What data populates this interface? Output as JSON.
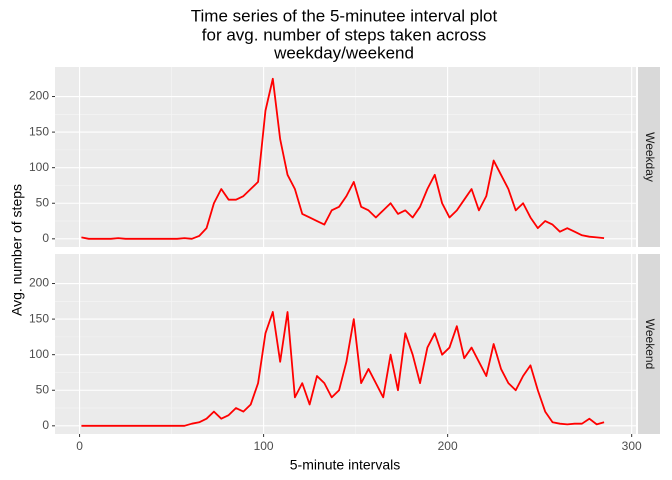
{
  "chart_data": [
    {
      "type": "line",
      "title": [
        "Time series of the 5-minutee interval plot",
        "for avg. number of steps taken across",
        "weekday/weekend"
      ],
      "y_label": "Avg. number of steps",
      "facet": "Weekday",
      "x": [
        1,
        5,
        9,
        13,
        17,
        21,
        25,
        29,
        33,
        37,
        41,
        45,
        49,
        53,
        57,
        61,
        65,
        69,
        73,
        77,
        81,
        85,
        89,
        93,
        97,
        101,
        105,
        109,
        113,
        117,
        121,
        125,
        129,
        133,
        137,
        141,
        145,
        149,
        153,
        157,
        161,
        165,
        169,
        173,
        177,
        181,
        185,
        189,
        193,
        197,
        201,
        205,
        209,
        213,
        217,
        221,
        225,
        229,
        233,
        237,
        241,
        245,
        249,
        253,
        257,
        261,
        265,
        269,
        273,
        277,
        281,
        285
      ],
      "series": [
        {
          "color": "#ff0000",
          "values": [
            2,
            0,
            0,
            0,
            0,
            1,
            0,
            0,
            0,
            0,
            0,
            0,
            0,
            0,
            1,
            0,
            4,
            15,
            50,
            70,
            55,
            55,
            60,
            70,
            80,
            180,
            225,
            140,
            90,
            70,
            35,
            30,
            25,
            20,
            40,
            45,
            60,
            80,
            45,
            40,
            30,
            40,
            50,
            35,
            40,
            30,
            45,
            70,
            90,
            50,
            30,
            40,
            55,
            70,
            40,
            60,
            110,
            90,
            70,
            40,
            50,
            30,
            15,
            25,
            20,
            10,
            15,
            10,
            5,
            3,
            2,
            1
          ]
        }
      ],
      "xlim": [
        -13.35,
        302.35
      ],
      "xticks": [
        0,
        100,
        200,
        300
      ],
      "ylim": [
        -11.5,
        241.5
      ],
      "yticks": [
        0,
        50,
        100,
        150,
        200
      ],
      "grid": true
    },
    {
      "type": "line",
      "x_label": "5-minute intervals",
      "facet": "Weekend",
      "x": [
        1,
        5,
        9,
        13,
        17,
        21,
        25,
        29,
        33,
        37,
        41,
        45,
        49,
        53,
        57,
        61,
        65,
        69,
        73,
        77,
        81,
        85,
        89,
        93,
        97,
        101,
        105,
        109,
        113,
        117,
        121,
        125,
        129,
        133,
        137,
        141,
        145,
        149,
        153,
        157,
        161,
        165,
        169,
        173,
        177,
        181,
        185,
        189,
        193,
        197,
        201,
        205,
        209,
        213,
        217,
        221,
        225,
        229,
        233,
        237,
        241,
        245,
        249,
        253,
        257,
        261,
        265,
        269,
        273,
        277,
        281,
        285
      ],
      "series": [
        {
          "color": "#ff0000",
          "values": [
            0,
            0,
            0,
            0,
            0,
            0,
            0,
            0,
            0,
            0,
            0,
            0,
            0,
            0,
            0,
            3,
            5,
            10,
            20,
            10,
            15,
            25,
            20,
            30,
            60,
            130,
            160,
            90,
            160,
            40,
            60,
            30,
            70,
            60,
            40,
            50,
            90,
            150,
            60,
            80,
            60,
            40,
            100,
            50,
            130,
            100,
            60,
            110,
            130,
            100,
            110,
            140,
            95,
            110,
            90,
            70,
            115,
            80,
            60,
            50,
            70,
            85,
            50,
            20,
            5,
            3,
            2,
            3,
            3,
            10,
            2,
            5
          ]
        }
      ],
      "xlim": [
        -13.35,
        302.35
      ],
      "xticks": [
        0,
        100,
        200,
        300
      ],
      "ylim": [
        -11.5,
        241.5
      ],
      "yticks": [
        0,
        50,
        100,
        150,
        200
      ],
      "grid": true
    }
  ]
}
